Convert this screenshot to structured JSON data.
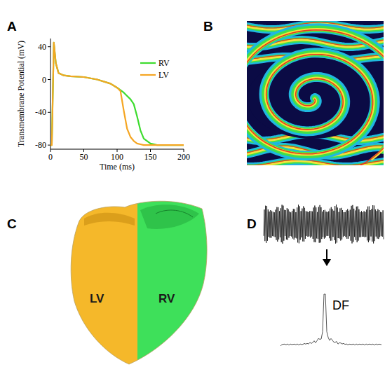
{
  "panels": [
    {
      "label": "A"
    },
    {
      "label": "B"
    },
    {
      "label": "C",
      "regions": [
        "LV",
        "RV"
      ]
    },
    {
      "label": "D",
      "annotation": "DF"
    }
  ],
  "chart_data": {
    "type": "line",
    "x_label": "Time (ms)",
    "y_label": "Transmembrane Potential (mV)",
    "x": [
      0,
      2,
      5,
      8,
      12,
      20,
      30,
      50,
      70,
      90,
      100,
      105,
      110,
      115,
      120,
      125,
      130,
      135,
      140,
      150,
      160,
      180,
      200
    ],
    "series": [
      {
        "name": "RV",
        "color": "#3ddc2e",
        "values": [
          -80,
          -80,
          45,
          20,
          8,
          5,
          4,
          3,
          0,
          -5,
          -10,
          -13,
          -16,
          -20,
          -24,
          -30,
          -45,
          -62,
          -72,
          -78,
          -80,
          -80,
          -80
        ]
      },
      {
        "name": "LV",
        "color": "#f5a623",
        "values": [
          -80,
          -80,
          45,
          20,
          8,
          5,
          4,
          3,
          0,
          -5,
          -10,
          -14,
          -38,
          -60,
          -70,
          -75,
          -78,
          -79,
          -80,
          -80,
          -80,
          -80,
          -80
        ]
      }
    ],
    "xlim": [
      0,
      200
    ],
    "ylim": [
      -85,
      50
    ],
    "xticks": [
      0,
      50,
      100,
      150,
      200
    ],
    "yticks": [
      -80,
      -40,
      0,
      40
    ],
    "legend": "upper right"
  }
}
